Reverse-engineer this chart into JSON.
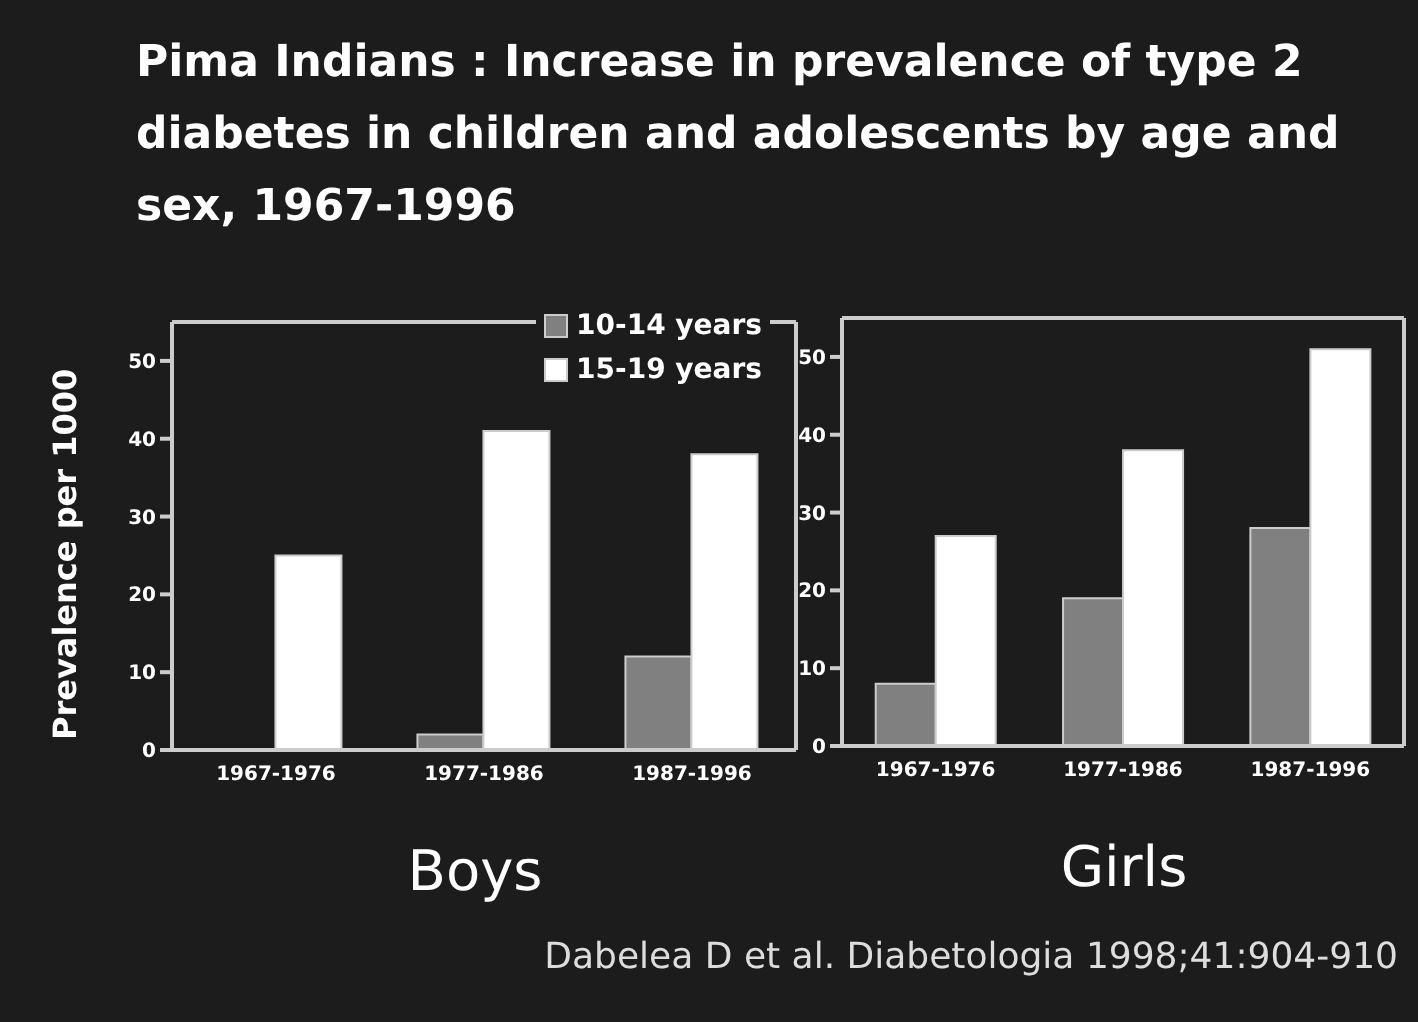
{
  "chart_data": [
    {
      "type": "bar",
      "title": "Pima Indians : Increase in prevalence of type 2 diabetes in children and adolescents by age and sex, 1967-1996",
      "xlabel": "Boys",
      "ylabel": "Prevalence per 1000",
      "categories": [
        "1967-1976",
        "1977-1986",
        "1987-1996"
      ],
      "series": [
        {
          "name": "10-14 years",
          "color": "#808080",
          "values": [
            0,
            2,
            12
          ]
        },
        {
          "name": "15-19 years",
          "color": "#ffffff",
          "values": [
            25,
            41,
            38
          ]
        }
      ],
      "ylim": [
        0,
        55
      ],
      "yticks": [
        0,
        10,
        20,
        30,
        40,
        50
      ],
      "legend": "top right"
    },
    {
      "type": "bar",
      "xlabel": "Girls",
      "categories": [
        "1967-1976",
        "1977-1986",
        "1987-1996"
      ],
      "series": [
        {
          "color": "#808080",
          "values": [
            8,
            19,
            28
          ]
        },
        {
          "color": "#ffffff",
          "values": [
            27,
            38,
            51
          ]
        }
      ],
      "ylim": [
        0,
        55
      ],
      "yticks": [
        0,
        10,
        20,
        30,
        40,
        50
      ],
      "annotations": [
        "Dabelea D et al. Diabetologia 1998;41:904-910"
      ]
    }
  ]
}
